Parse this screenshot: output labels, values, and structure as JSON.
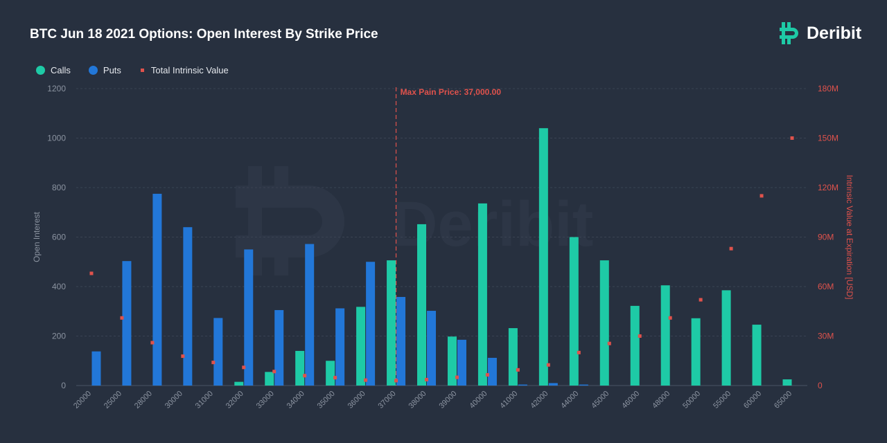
{
  "title": "BTC Jun 18 2021 Options: Open Interest By Strike Price",
  "brand": {
    "name": "Deribit",
    "watermark": "Deribit"
  },
  "colors": {
    "calls": "#1ecaa6",
    "puts": "#2277d8",
    "intrinsic": "#e0524c",
    "maxpain": "#e0524c",
    "axis_text": "#8b93a0",
    "grid": "#3a4353",
    "background": "#27303f"
  },
  "legend": {
    "calls": "Calls",
    "puts": "Puts",
    "intrinsic": "Total Intrinsic Value"
  },
  "chart_data": {
    "type": "bar",
    "title": "BTC Jun 18 2021 Options: Open Interest By Strike Price",
    "categories": [
      "20000",
      "25000",
      "28000",
      "30000",
      "31000",
      "32000",
      "33000",
      "34000",
      "35000",
      "36000",
      "37000",
      "38000",
      "39000",
      "40000",
      "41000",
      "42000",
      "44000",
      "45000",
      "46000",
      "48000",
      "50000",
      "55000",
      "60000",
      "65000"
    ],
    "series": [
      {
        "name": "Calls",
        "axis": "left",
        "type": "bar",
        "values": [
          0,
          0,
          0,
          0,
          0,
          15,
          55,
          140,
          100,
          318,
          506,
          652,
          198,
          736,
          232,
          1040,
          600,
          506,
          322,
          405,
          272,
          385,
          246,
          25
        ]
      },
      {
        "name": "Puts",
        "axis": "left",
        "type": "bar",
        "values": [
          138,
          503,
          775,
          640,
          273,
          550,
          305,
          572,
          312,
          500,
          358,
          302,
          185,
          112,
          4,
          10,
          4,
          0,
          0,
          0,
          0,
          0,
          0,
          0
        ]
      },
      {
        "name": "Total Intrinsic Value",
        "axis": "right",
        "type": "scatter",
        "values": [
          68000000,
          41000000,
          26000000,
          17800000,
          14000000,
          11000000,
          8500000,
          6000000,
          4800000,
          3300000,
          3000000,
          3600000,
          5000000,
          6500000,
          9500000,
          12500000,
          20000000,
          25500000,
          30000000,
          41000000,
          52000000,
          83000000,
          115000000,
          150000000
        ]
      }
    ],
    "ylabel": "Open Interest",
    "ylim": [
      0,
      1200
    ],
    "yticks": [
      "0",
      "200",
      "400",
      "600",
      "800",
      "1000",
      "1200"
    ],
    "y2label": "Intrinsic Value at Expiration [USD]",
    "y2lim": [
      0,
      180000000
    ],
    "y2ticks": [
      "0",
      "30M",
      "60M",
      "90M",
      "120M",
      "150M",
      "180M"
    ],
    "max_pain": {
      "value": "37000",
      "label": "Max Pain Price: 37,000.00"
    },
    "grid": true,
    "legend_position": "top-left"
  }
}
